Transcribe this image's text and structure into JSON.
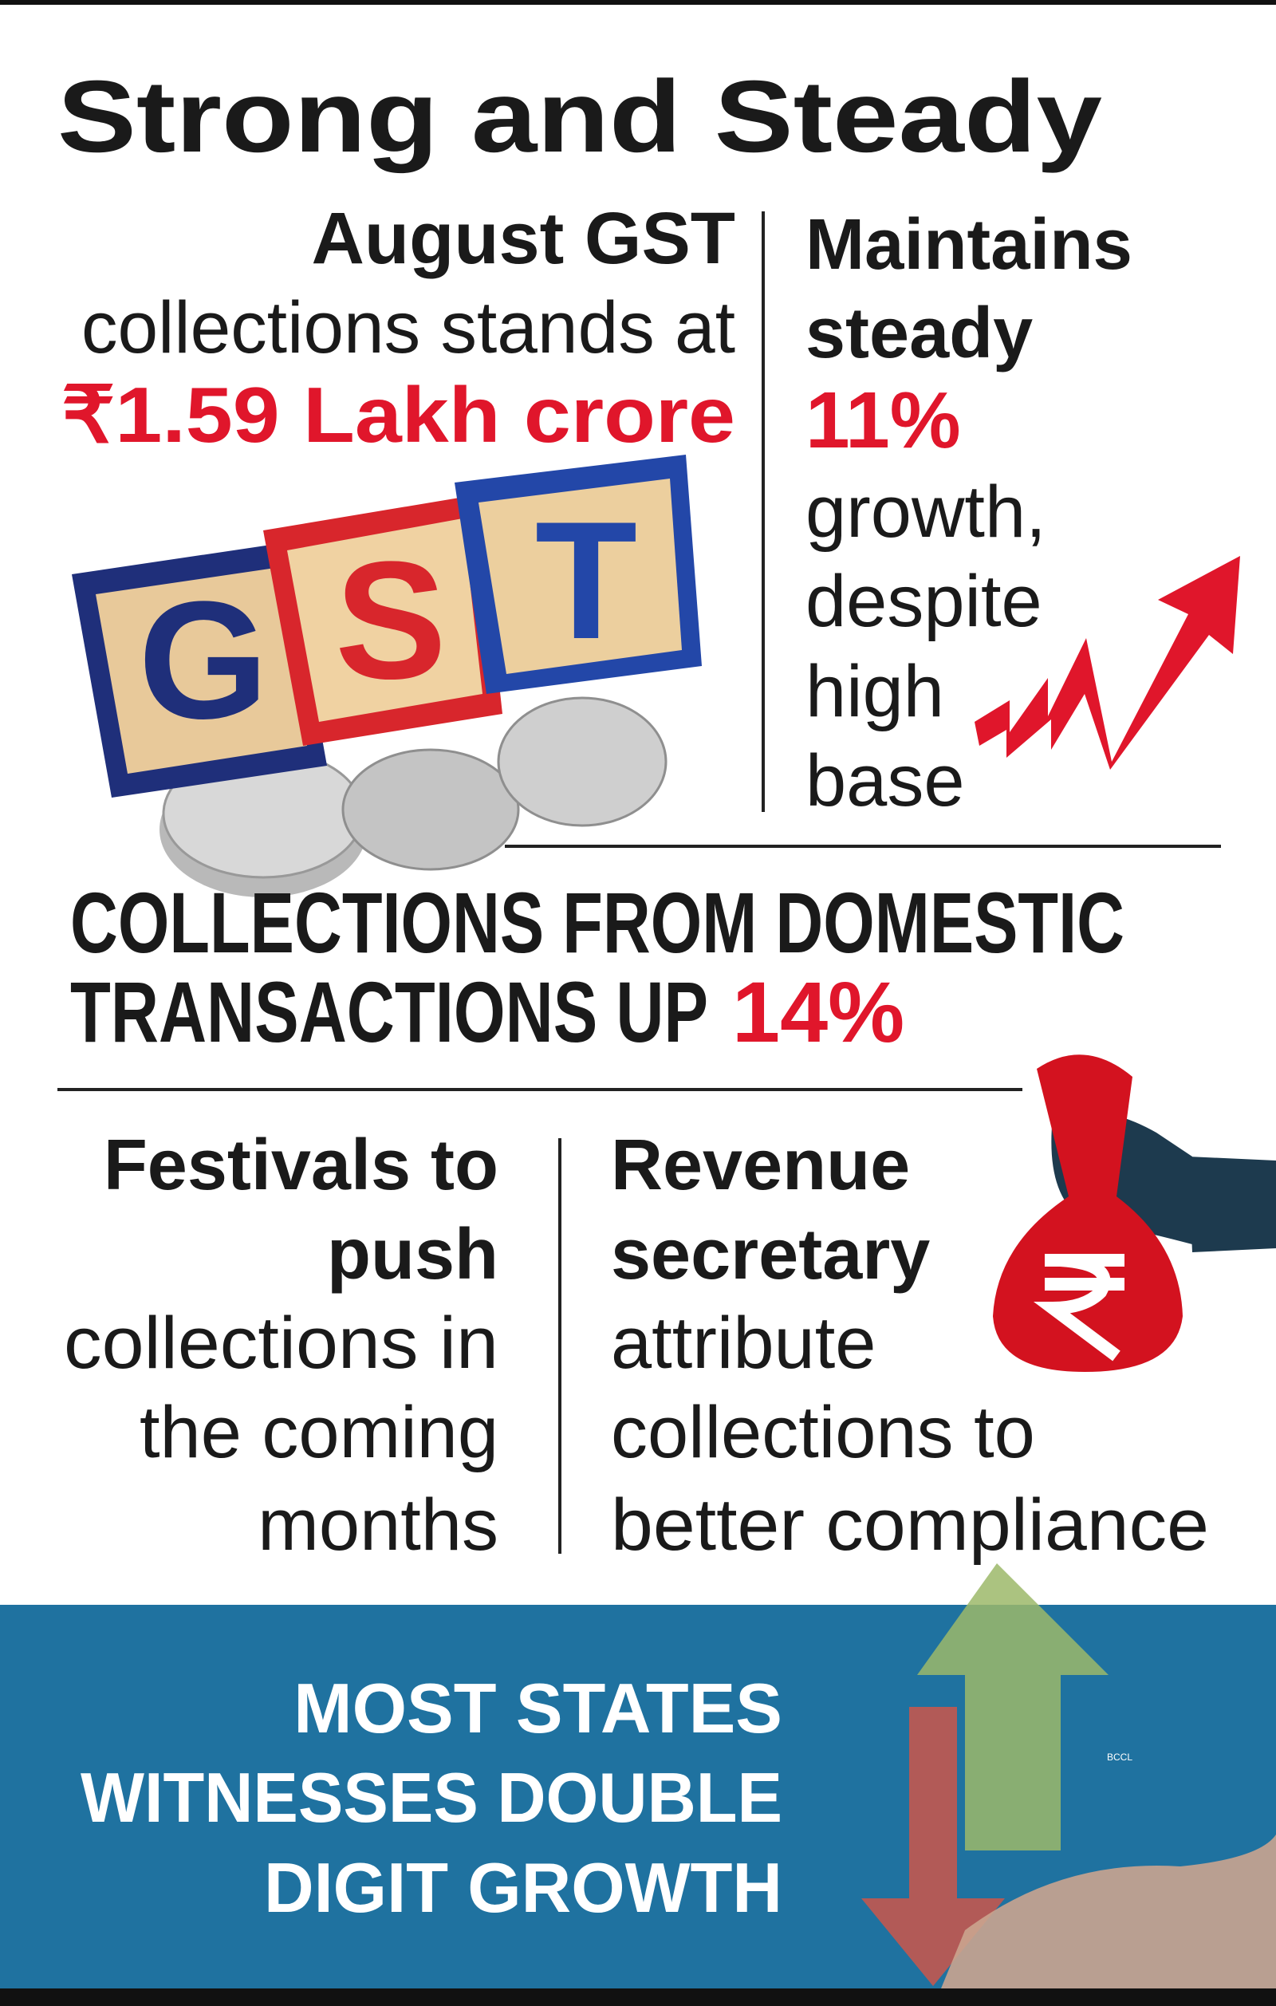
{
  "title": "Strong and Steady",
  "headline": {
    "line1": "August GST",
    "line2": "collections stands at",
    "amount": "₹1.59 Lakh crore"
  },
  "growth": {
    "line1": "Maintains",
    "line2": "steady",
    "rate": "11%",
    "line3": "growth,",
    "line4": "despite",
    "line5": "high",
    "line6": "base"
  },
  "gst_blocks": [
    "G",
    "S",
    "T"
  ],
  "domestic": {
    "line1": "COLLECTIONS FROM DOMESTIC",
    "line2": "TRANSACTIONS UP",
    "rate": "14%"
  },
  "festivals": [
    "Festivals to",
    "push",
    "collections in",
    "the coming",
    "months"
  ],
  "revenue": [
    "Revenue",
    "secretary",
    "attribute",
    "collections to",
    "better compliance"
  ],
  "banner": [
    "MOST STATES",
    "WITNESSES DOUBLE",
    "DIGIT GROWTH"
  ],
  "credit": "BCCL"
}
